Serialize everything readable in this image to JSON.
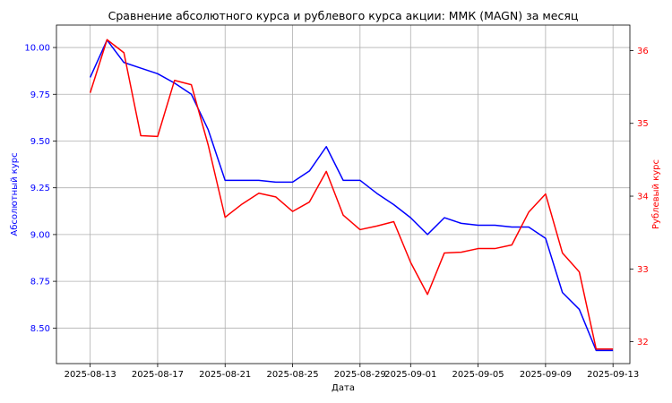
{
  "chart_data": {
    "type": "line",
    "title": "Сравнение абсолютного курса и рублевого курса акции: ММК (MAGN) за месяц",
    "xlabel": "Дата",
    "ylabel_left": "Абсолютный курс",
    "ylabel_right": "Рублевый курс",
    "grid": true,
    "xlim": [
      "2025-08-11",
      "2025-09-14"
    ],
    "ylim_left": [
      8.31,
      10.12
    ],
    "ylim_right": [
      31.7,
      36.35
    ],
    "x_ticks": [
      "2025-08-13",
      "2025-08-17",
      "2025-08-21",
      "2025-08-25",
      "2025-08-29",
      "2025-09-01",
      "2025-09-05",
      "2025-09-09",
      "2025-09-13"
    ],
    "y_ticks_left": [
      "8.50",
      "8.75",
      "9.00",
      "9.25",
      "9.50",
      "9.75",
      "10.00"
    ],
    "y_ticks_right": [
      "32",
      "33",
      "34",
      "35",
      "36"
    ],
    "x": [
      "2025-08-13",
      "2025-08-14",
      "2025-08-15",
      "2025-08-16",
      "2025-08-17",
      "2025-08-18",
      "2025-08-19",
      "2025-08-20",
      "2025-08-21",
      "2025-08-22",
      "2025-08-23",
      "2025-08-24",
      "2025-08-25",
      "2025-08-26",
      "2025-08-27",
      "2025-08-28",
      "2025-08-29",
      "2025-08-30",
      "2025-08-31",
      "2025-09-01",
      "2025-09-02",
      "2025-09-03",
      "2025-09-04",
      "2025-09-05",
      "2025-09-06",
      "2025-09-07",
      "2025-09-08",
      "2025-09-09",
      "2025-09-10",
      "2025-09-11",
      "2025-09-12",
      "2025-09-13"
    ],
    "series": [
      {
        "axis": "left",
        "color": "#0000ff",
        "values": [
          9.84,
          10.04,
          9.92,
          9.89,
          9.86,
          9.81,
          9.75,
          9.56,
          9.29,
          9.29,
          9.29,
          9.28,
          9.28,
          9.34,
          9.47,
          9.29,
          9.29,
          9.22,
          9.16,
          9.09,
          9.0,
          9.09,
          9.06,
          9.05,
          9.05,
          9.04,
          9.04,
          8.98,
          8.69,
          8.6,
          8.38,
          8.38
        ]
      },
      {
        "axis": "right",
        "color": "#ff0000",
        "values": [
          35.42,
          36.15,
          35.97,
          34.83,
          34.82,
          35.59,
          35.53,
          34.7,
          33.71,
          33.89,
          34.04,
          33.99,
          33.79,
          33.92,
          34.34,
          33.74,
          33.54,
          33.59,
          33.65,
          33.09,
          32.65,
          33.22,
          33.23,
          33.28,
          33.28,
          33.33,
          33.78,
          34.03,
          33.22,
          32.96,
          31.9,
          31.9
        ]
      }
    ]
  }
}
